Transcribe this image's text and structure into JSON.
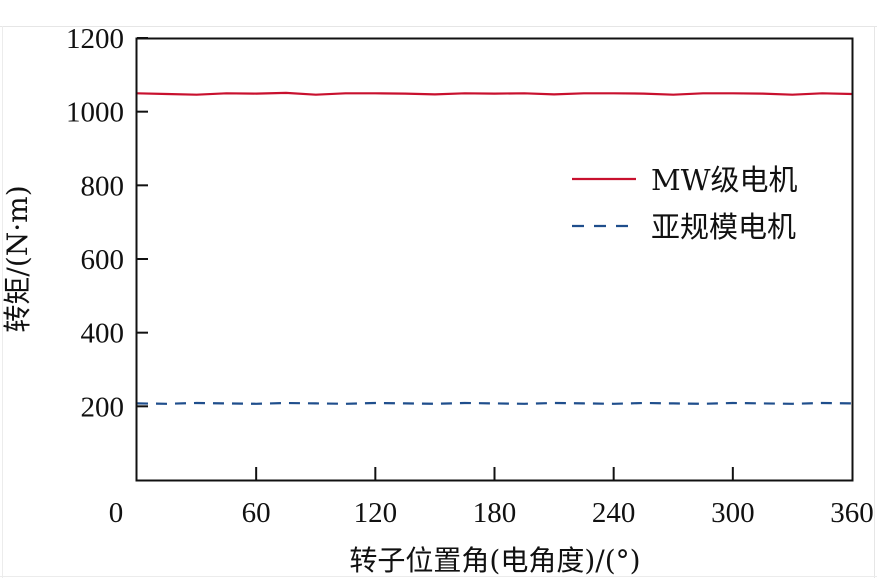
{
  "chart_data": {
    "type": "line",
    "title": "",
    "xlabel": "转子位置角(电角度)/(°)",
    "ylabel": "转矩/(N·m)",
    "xlim": [
      0,
      360
    ],
    "ylim": [
      0,
      1200
    ],
    "xticks": [
      0,
      60,
      120,
      180,
      240,
      300,
      360
    ],
    "yticks": [
      200,
      400,
      600,
      800,
      1000,
      1200
    ],
    "ytick_labels_shown": [
      "1200",
      "1000",
      "800",
      "600",
      "400",
      "200"
    ],
    "xtick_labels_shown": [
      "0",
      "60",
      "120",
      "180",
      "240",
      "300",
      "360"
    ],
    "grid": false,
    "legend_position": "upper right (inside, mid-height)",
    "x": [
      0,
      15,
      30,
      45,
      60,
      75,
      90,
      105,
      120,
      135,
      150,
      165,
      180,
      195,
      210,
      225,
      240,
      255,
      270,
      285,
      300,
      315,
      330,
      345,
      360
    ],
    "series": [
      {
        "name": "MW级电机",
        "style": "solid",
        "color": "#c8102e",
        "values": [
          1050,
          1048,
          1046,
          1050,
          1049,
          1051,
          1046,
          1050,
          1050,
          1049,
          1047,
          1050,
          1049,
          1050,
          1047,
          1050,
          1050,
          1049,
          1046,
          1050,
          1050,
          1049,
          1046,
          1050,
          1048
        ]
      },
      {
        "name": "亚规模电机",
        "style": "dashed",
        "color": "#1f4e8c",
        "values": [
          208,
          207,
          209,
          208,
          207,
          209,
          208,
          207,
          209,
          208,
          207,
          209,
          208,
          207,
          209,
          208,
          207,
          209,
          208,
          207,
          209,
          208,
          207,
          209,
          208
        ]
      }
    ]
  },
  "legend": {
    "items": [
      {
        "label": "MW级电机",
        "color": "#c8102e",
        "style": "solid"
      },
      {
        "label": "亚规模电机",
        "color": "#1f4e8c",
        "style": "dashed"
      }
    ]
  },
  "axes": {
    "x_title": "转子位置角(电角度)/(°)",
    "y_title": "转矩/(N·m)"
  }
}
